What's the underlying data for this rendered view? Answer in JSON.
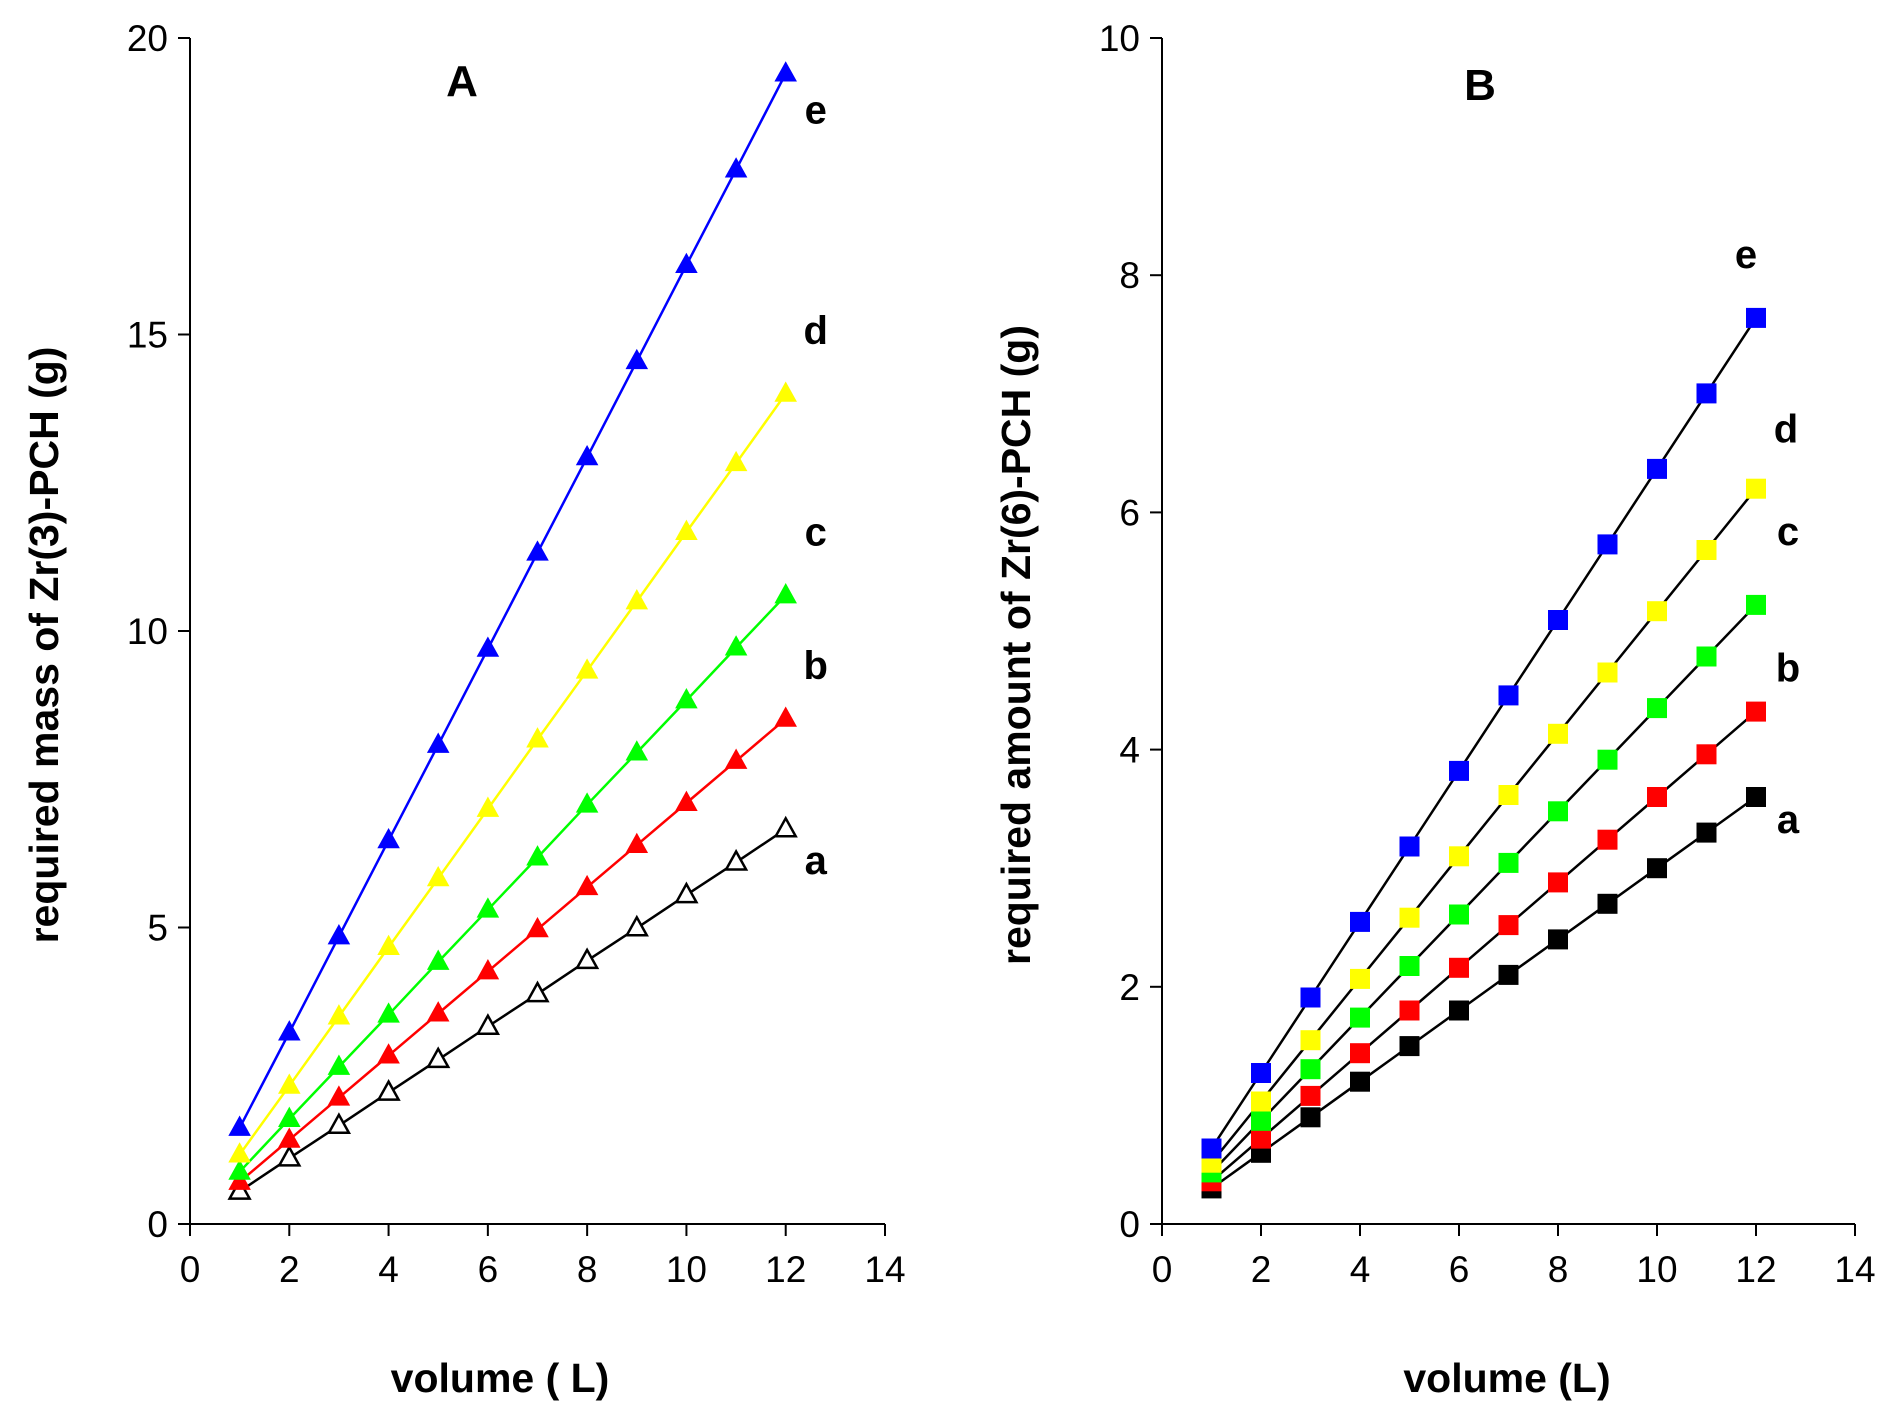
{
  "colors": {
    "a": "#000000",
    "b": "#ff0000",
    "c": "#00ff00",
    "d": "#ffff00",
    "e": "#0000ff",
    "axis": "#000000",
    "panel_b_line": "#000000"
  },
  "chart_data": [
    {
      "type": "line",
      "title": "A",
      "xlabel": "volume ( L)",
      "ylabel": "required mass of Zr(3)-PCH (g)",
      "xlim": [
        0,
        14
      ],
      "ylim": [
        0,
        20
      ],
      "xticks": [
        "0",
        "2",
        "4",
        "6",
        "8",
        "10",
        "12",
        "14"
      ],
      "yticks": [
        "0",
        "5",
        "10",
        "15",
        "20"
      ],
      "marker": "triangle",
      "grid": false,
      "x": [
        1,
        2,
        3,
        4,
        5,
        6,
        7,
        8,
        9,
        10,
        11,
        12
      ],
      "series": [
        {
          "name": "a",
          "color_key": "a",
          "values": [
            0.55,
            1.11,
            1.66,
            2.22,
            2.77,
            3.33,
            3.88,
            4.44,
            4.99,
            5.55,
            6.1,
            6.66
          ]
        },
        {
          "name": "b",
          "color_key": "b",
          "values": [
            0.71,
            1.42,
            2.13,
            2.84,
            3.55,
            4.26,
            4.97,
            5.68,
            6.39,
            7.1,
            7.81,
            8.52
          ]
        },
        {
          "name": "c",
          "color_key": "c",
          "values": [
            0.88,
            1.77,
            2.65,
            3.53,
            4.42,
            5.3,
            6.18,
            7.07,
            7.95,
            8.83,
            9.72,
            10.6
          ]
        },
        {
          "name": "d",
          "color_key": "d",
          "values": [
            1.17,
            2.33,
            3.5,
            4.67,
            5.83,
            7.0,
            8.17,
            9.33,
            10.5,
            11.67,
            12.83,
            14.0
          ]
        },
        {
          "name": "e",
          "color_key": "e",
          "values": [
            1.62,
            3.23,
            4.85,
            6.47,
            8.08,
            9.7,
            11.32,
            12.93,
            14.55,
            16.17,
            17.78,
            19.4
          ]
        }
      ]
    },
    {
      "type": "line",
      "title": "B",
      "xlabel": "volume (L)",
      "ylabel": "required amount of Zr(6)-PCH (g)",
      "xlim": [
        0,
        14
      ],
      "ylim": [
        0,
        10
      ],
      "xticks": [
        "0",
        "2",
        "4",
        "6",
        "8",
        "10",
        "12",
        "14"
      ],
      "yticks": [
        "0",
        "2",
        "4",
        "6",
        "8",
        "10"
      ],
      "marker": "square",
      "grid": false,
      "x": [
        1,
        2,
        3,
        4,
        5,
        6,
        7,
        8,
        9,
        10,
        11,
        12
      ],
      "series": [
        {
          "name": "a",
          "color_key": "a",
          "values": [
            0.3,
            0.6,
            0.9,
            1.2,
            1.5,
            1.8,
            2.1,
            2.4,
            2.7,
            3.0,
            3.3,
            3.6
          ]
        },
        {
          "name": "b",
          "color_key": "b",
          "values": [
            0.36,
            0.72,
            1.08,
            1.44,
            1.8,
            2.16,
            2.52,
            2.88,
            3.24,
            3.6,
            3.96,
            4.32
          ]
        },
        {
          "name": "c",
          "color_key": "c",
          "values": [
            0.435,
            0.87,
            1.305,
            1.74,
            2.175,
            2.61,
            3.045,
            3.48,
            3.915,
            4.35,
            4.785,
            5.22
          ]
        },
        {
          "name": "d",
          "color_key": "d",
          "values": [
            0.517,
            1.033,
            1.55,
            2.067,
            2.583,
            3.1,
            3.617,
            4.133,
            4.65,
            5.167,
            5.683,
            6.2
          ]
        },
        {
          "name": "e",
          "color_key": "e",
          "values": [
            0.637,
            1.273,
            1.91,
            2.547,
            3.183,
            3.82,
            4.457,
            5.093,
            5.73,
            6.367,
            7.003,
            7.64
          ]
        }
      ]
    }
  ]
}
